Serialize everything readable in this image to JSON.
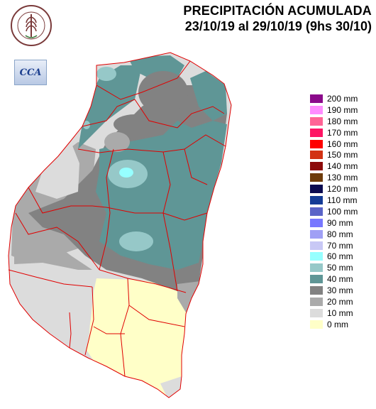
{
  "header": {
    "title": "PRECIPITACIÓN ACUMULADA",
    "period": "23/10/19 al 29/10/19 (9hs 30/10)"
  },
  "logos": {
    "bolsa_icon": "bolsa-de-cereales-seal",
    "bolsa_top_text": "BOLSA DE CEREALES",
    "bolsa_bottom_text": "DE ENTRE RIOS",
    "cca_label": "CCA"
  },
  "legend": {
    "items": [
      {
        "label": "200 mm",
        "color": "#8b0a8b"
      },
      {
        "label": "190 mm",
        "color": "#ff8cff"
      },
      {
        "label": "180 mm",
        "color": "#ff6496"
      },
      {
        "label": "170 mm",
        "color": "#ff1464"
      },
      {
        "label": "160 mm",
        "color": "#ff0000"
      },
      {
        "label": "150 mm",
        "color": "#d23214"
      },
      {
        "label": "140 mm",
        "color": "#8c0a0a"
      },
      {
        "label": "130 mm",
        "color": "#6e3c0a"
      },
      {
        "label": "120 mm",
        "color": "#0a0a50"
      },
      {
        "label": "110 mm",
        "color": "#143c96"
      },
      {
        "label": "100 mm",
        "color": "#5a64c8"
      },
      {
        "label": "90 mm",
        "color": "#7878ff"
      },
      {
        "label": "80 mm",
        "color": "#a0a0f5"
      },
      {
        "label": "70 mm",
        "color": "#c8c8f5"
      },
      {
        "label": "60 mm",
        "color": "#96ffff"
      },
      {
        "label": "50 mm",
        "color": "#96c8c8"
      },
      {
        "label": "40 mm",
        "color": "#5f9696"
      },
      {
        "label": "30 mm",
        "color": "#828282"
      },
      {
        "label": "20 mm",
        "color": "#aaaaaa"
      },
      {
        "label": "10 mm",
        "color": "#dcdcdc"
      },
      {
        "label": "0 mm",
        "color": "#ffffc8"
      }
    ]
  },
  "map": {
    "border_color": "#e00000",
    "region": "Entre Ríos"
  }
}
